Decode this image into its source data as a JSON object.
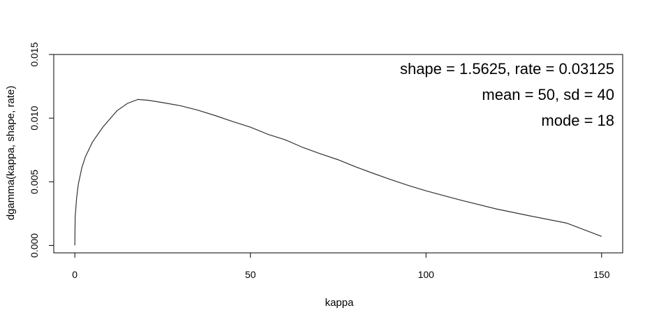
{
  "chart_data": {
    "type": "line",
    "title": "",
    "xlabel": "kappa",
    "ylabel": "dgamma(kappa, shape, rate)",
    "xlim": [
      -6,
      156
    ],
    "ylim": [
      -0.00058,
      0.015
    ],
    "xticks": [
      0,
      50,
      100,
      150
    ],
    "xtick_labels": [
      "0",
      "50",
      "100",
      "150"
    ],
    "yticks": [
      0.0,
      0.005,
      0.01,
      0.015
    ],
    "ytick_labels": [
      "0.000",
      "0.005",
      "0.010",
      "0.015"
    ],
    "grid": false,
    "legend": "none",
    "line_color": "#333333",
    "series": [
      {
        "x": [
          0,
          0.1,
          0.5,
          1,
          2,
          3,
          5,
          8,
          12,
          15,
          18,
          21,
          25,
          30,
          35,
          40,
          45,
          50,
          55,
          60,
          65,
          70,
          75,
          80,
          85,
          90,
          95,
          100,
          110,
          120,
          130,
          140,
          150
        ],
        "values": [
          0.0,
          0.00225,
          0.0037,
          0.00481,
          0.00611,
          0.00696,
          0.00811,
          0.0093,
          0.01058,
          0.01116,
          0.01147,
          0.0114,
          0.01122,
          0.01098,
          0.01063,
          0.0102,
          0.00973,
          0.00929,
          0.00873,
          0.00829,
          0.00769,
          0.00719,
          0.00673,
          0.00617,
          0.00566,
          0.00517,
          0.00471,
          0.00429,
          0.00355,
          0.00287,
          0.0023,
          0.00176,
          0.00071
        ]
      }
    ],
    "annotations": [
      "shape = 1.5625, rate = 0.03125",
      "mean = 50, sd = 40",
      "mode = 18"
    ]
  }
}
